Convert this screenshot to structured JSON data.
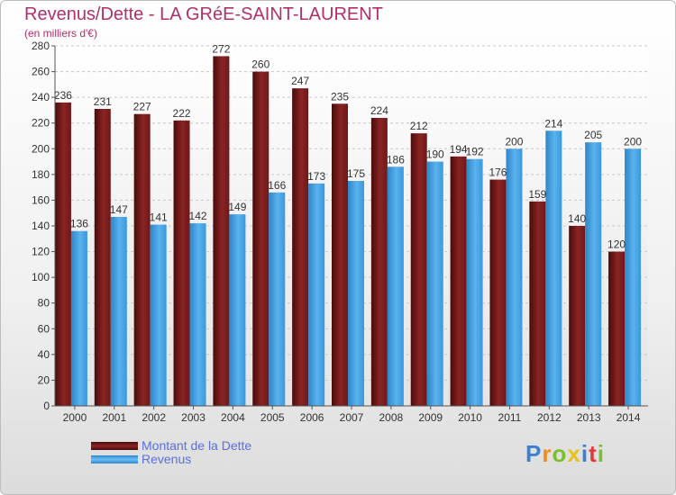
{
  "title": "Revenus/Dette - LA GRéE-SAINT-LAURENT",
  "subtitle": "(en milliers d'€)",
  "logo": [
    "P",
    "r",
    "o",
    "x",
    "i",
    "t",
    "i"
  ],
  "colors": {
    "dette": "#7a1c1c",
    "revenus": "#3d9de0",
    "title": "#b0306a",
    "legend_text": "#5a6fe0"
  },
  "legend": [
    {
      "label": "Montant de la Dette",
      "color": "#7a1c1c"
    },
    {
      "label": "Revenus",
      "color": "#3d9de0"
    }
  ],
  "chart_data": {
    "type": "bar",
    "categories": [
      "2000",
      "2001",
      "2002",
      "2003",
      "2004",
      "2005",
      "2006",
      "2007",
      "2008",
      "2009",
      "2010",
      "2011",
      "2012",
      "2013",
      "2014"
    ],
    "series": [
      {
        "name": "Montant de la Dette",
        "values": [
          236,
          231,
          227,
          222,
          272,
          260,
          247,
          235,
          224,
          212,
          194,
          176,
          159,
          140,
          120
        ]
      },
      {
        "name": "Revenus",
        "values": [
          136,
          147,
          141,
          142,
          149,
          166,
          173,
          175,
          186,
          190,
          192,
          200,
          214,
          205,
          200
        ]
      }
    ],
    "yticks": [
      0,
      20,
      40,
      60,
      80,
      100,
      120,
      140,
      160,
      180,
      200,
      220,
      240,
      260,
      280
    ],
    "ylim": [
      0,
      280
    ],
    "grid": true,
    "legend_position": "bottom-left"
  }
}
